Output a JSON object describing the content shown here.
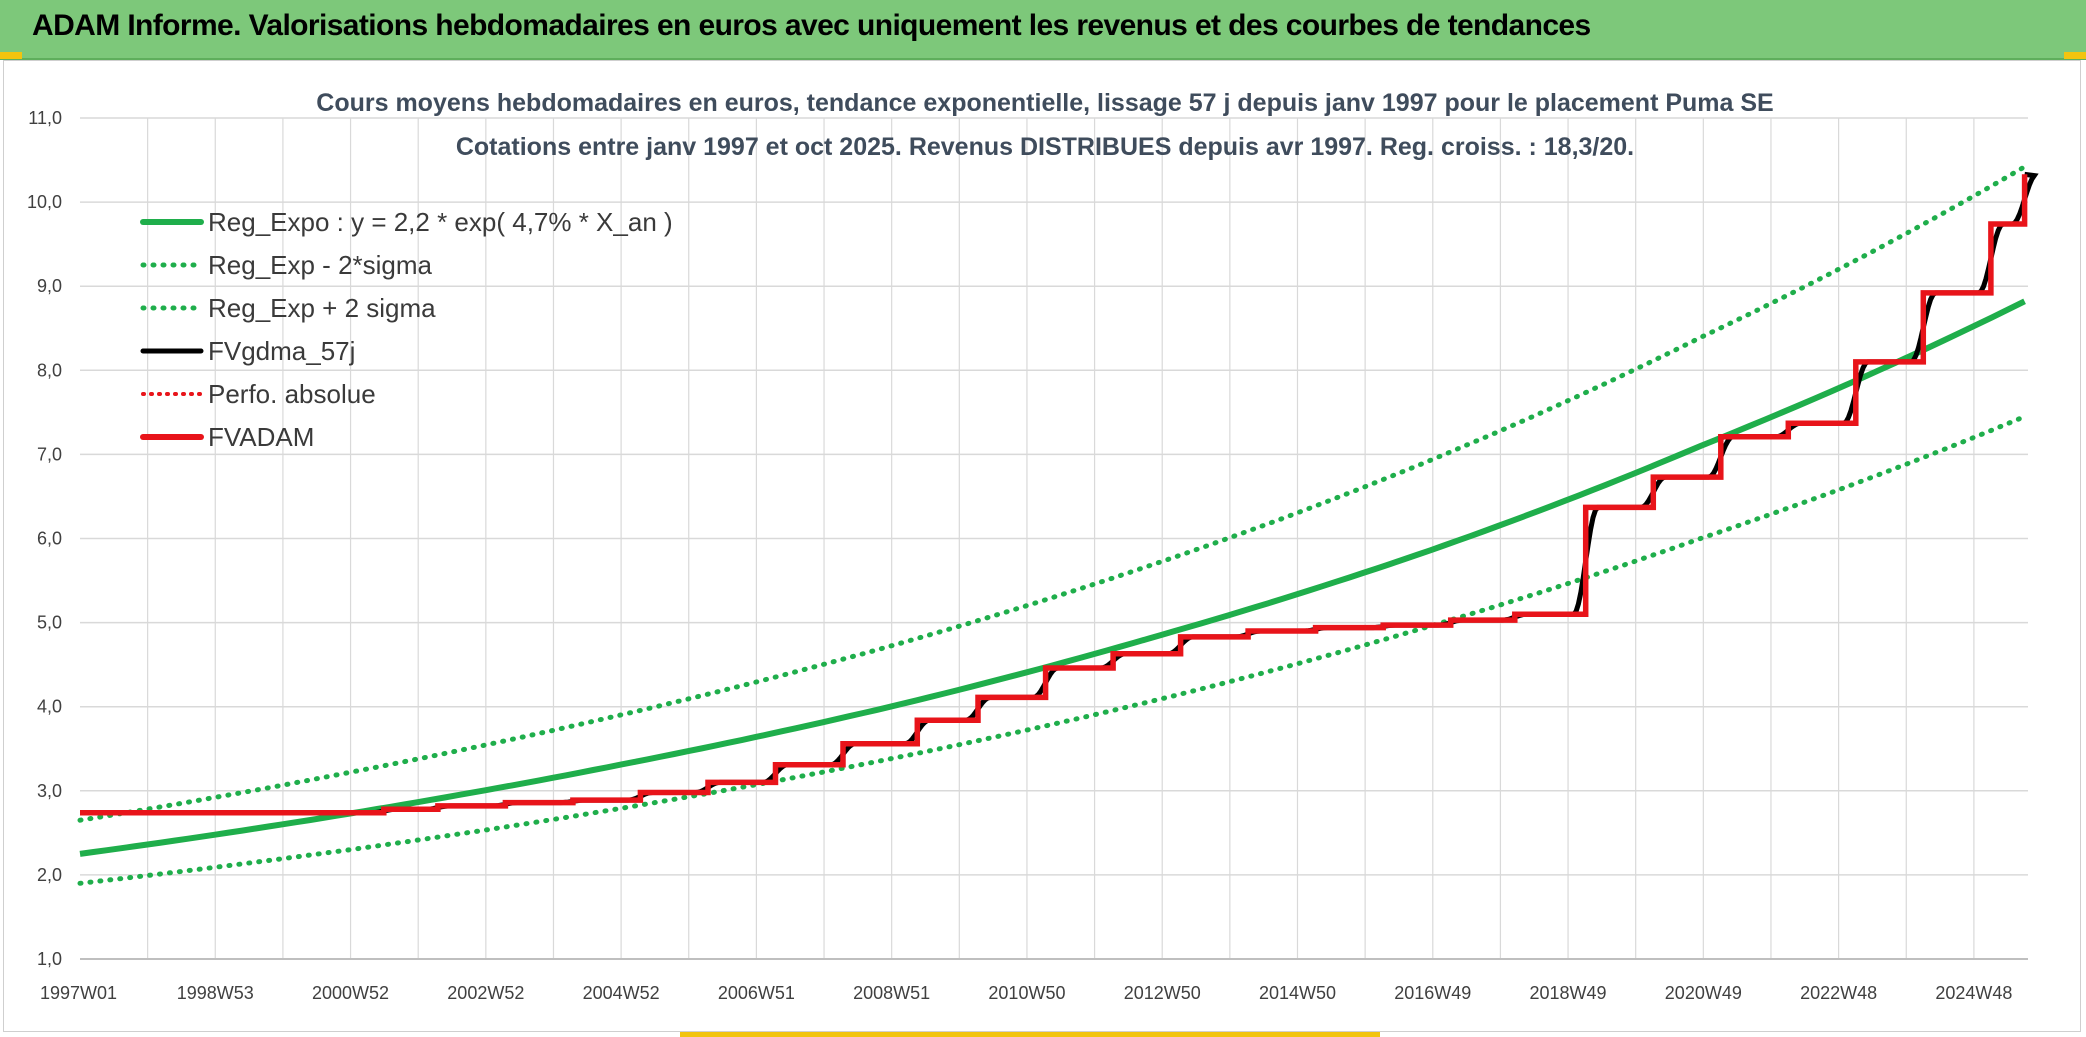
{
  "banner": {
    "title": "ADAM Informe. Valorisations hebdomadaires en euros avec uniquement les revenus et des courbes de tendances"
  },
  "colors": {
    "banner_bg": "#7dc87a",
    "reg_green": "#1fae4b",
    "fvadam_red": "#e8141a",
    "fvgdma_black": "#000000",
    "grid": "#d9d9d9"
  },
  "chart_data": {
    "type": "line",
    "title": "Cours moyens hebdomadaires en euros, tendance exponentielle, lissage 57 j depuis janv 1997 pour le placement Puma SE",
    "subtitle": "Cotations entre janv 1997 et oct 2025. Revenus DISTRIBUES depuis avr 1997. Reg. croiss. : 18,3/20.",
    "x_ticks": [
      "1997W01",
      "1998W53",
      "2000W52",
      "2002W52",
      "2004W52",
      "2006W51",
      "2008W51",
      "2010W50",
      "2012W50",
      "2014W50",
      "2016W49",
      "2018W49",
      "2020W49",
      "2022W48",
      "2024W48"
    ],
    "x_range": [
      "1997W01",
      "2025W44"
    ],
    "y_range": [
      1.0,
      11.0
    ],
    "y_ticks": [
      "1,0",
      "2,0",
      "3,0",
      "4,0",
      "5,0",
      "6,0",
      "7,0",
      "8,0",
      "9,0",
      "10,0",
      "11,0"
    ],
    "grid": true,
    "legend_position": "top-left",
    "legend": [
      {
        "label": "Reg_Expo : y = 2,2 * exp( 4,7% *  X_an )",
        "style": "solid-green-thick"
      },
      {
        "label": "Reg_Exp - 2*sigma",
        "style": "dotted-green"
      },
      {
        "label": "Reg_Exp + 2 sigma",
        "style": "dotted-green"
      },
      {
        "label": "FVgdma_57j",
        "style": "solid-black"
      },
      {
        "label": "Perfo. absolue",
        "style": "dotted-red"
      },
      {
        "label": "FVADAM",
        "style": "solid-red-thick"
      }
    ],
    "series": [
      {
        "name": "Reg_Expo : y = 2,2 * exp( 4,7% *  X_an )",
        "x_years": [
          1997.0,
          2001.0,
          2005.0,
          2009.0,
          2013.0,
          2017.0,
          2021.0,
          2025.8
        ],
        "values": [
          2.25,
          2.73,
          3.31,
          4.0,
          4.85,
          5.86,
          7.1,
          8.82
        ]
      },
      {
        "name": "Reg_Exp - 2*sigma",
        "x_years": [
          1997.0,
          2001.0,
          2005.0,
          2009.0,
          2013.0,
          2017.0,
          2021.0,
          2025.8
        ],
        "values": [
          1.9,
          2.3,
          2.79,
          3.38,
          4.09,
          4.96,
          6.0,
          7.45
        ]
      },
      {
        "name": "Reg_Exp + 2 sigma",
        "x_years": [
          1997.0,
          2001.0,
          2005.0,
          2009.0,
          2013.0,
          2017.0,
          2021.0,
          2025.8
        ],
        "values": [
          2.65,
          3.22,
          3.9,
          4.72,
          5.72,
          6.93,
          8.39,
          10.42
        ]
      },
      {
        "name": "FVADAM",
        "x_years": [
          1997.0,
          2001.5,
          2002.3,
          2003.3,
          2004.3,
          2005.3,
          2006.3,
          2007.3,
          2008.3,
          2009.4,
          2010.3,
          2011.3,
          2012.3,
          2013.3,
          2014.3,
          2015.3,
          2016.3,
          2017.3,
          2018.25,
          2019.3,
          2020.3,
          2021.3,
          2022.3,
          2023.3,
          2024.3,
          2025.3,
          2025.8
        ],
        "values": [
          2.74,
          2.78,
          2.82,
          2.86,
          2.89,
          2.98,
          3.1,
          3.31,
          3.56,
          3.84,
          4.11,
          4.46,
          4.63,
          4.83,
          4.9,
          4.94,
          4.97,
          5.03,
          5.1,
          6.37,
          6.73,
          7.21,
          7.37,
          8.1,
          8.92,
          9.74,
          10.33
        ]
      }
    ]
  }
}
